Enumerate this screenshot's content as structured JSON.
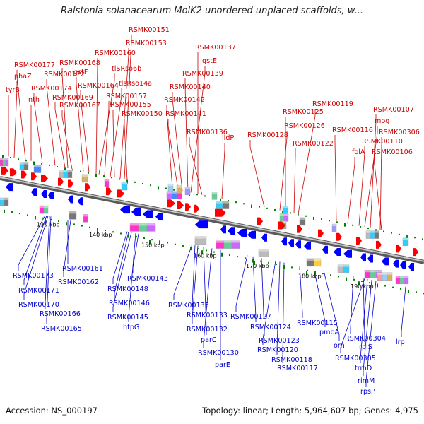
{
  "title": "Ralstonia solanacearum MolK2 unordered unplaced scaffolds, w...",
  "footer": {
    "accession": "Accession: NS_000197",
    "summary": "Topology: linear; Length: 5,964,607 bp; Genes: 4,975"
  },
  "colors": {
    "forward_label": "#cc0000",
    "reverse_label": "#0000cc",
    "forward_arrow": "#ff0000",
    "reverse_arrow": "#0000ff",
    "backbone": "#888888",
    "tick_mark": "#008000"
  },
  "ruler_ticks": [
    "130 kbp",
    "140 kbp",
    "150 kbp",
    "160 kbp",
    "170 kbp",
    "180 kbp",
    "190 kbp"
  ],
  "forward_labels": [
    "tyrB",
    "phaZ",
    "RSMK00177",
    "nth",
    "RSMK00174",
    "RSMK00172",
    "RSMK00169",
    "RSMK00168",
    "RSMK00167",
    "gstF",
    "RSMK00164",
    "RSMK00160",
    "tlSRso6b",
    "RSMK00157",
    "tlsRso14a",
    "RSMK00155",
    "RSMK00153",
    "RSMK00151",
    "RSMK00150",
    "RSMK00142",
    "RSMK00141",
    "RSMK00140",
    "RSMK00139",
    "gstE",
    "RSMK00137",
    "RSMK00136",
    "lldP",
    "RSMK00128",
    "RSMK00126",
    "RSMK00125",
    "RSMK00122",
    "RSMK00119",
    "RSMK00116",
    "folA",
    "RSMK00110",
    "mog",
    "RSMK00107",
    "RSMK00306",
    "RSMK00106"
  ],
  "reverse_labels": [
    "RSMK00173",
    "RSMK00171",
    "RSMK00170",
    "RSMK00166",
    "RSMK00165",
    "RSMK00161",
    "RSMK00162",
    "RSMK00148",
    "RSMK00146",
    "RSMK00145",
    "htpG",
    "RSMK00143",
    "RSMK00135",
    "RSMK00133",
    "RSMK00132",
    "parC",
    "RSMK00130",
    "parE",
    "RSMK00127",
    "RSMK00124",
    "RSMK00123",
    "RSMK00120",
    "RSMK00118",
    "RSMK00117",
    "RSMK00115",
    "pmbA",
    "orn",
    "RSMK00304",
    "rplS",
    "RSMK00305",
    "trmD",
    "rimM",
    "rpsP",
    "lrp"
  ]
}
